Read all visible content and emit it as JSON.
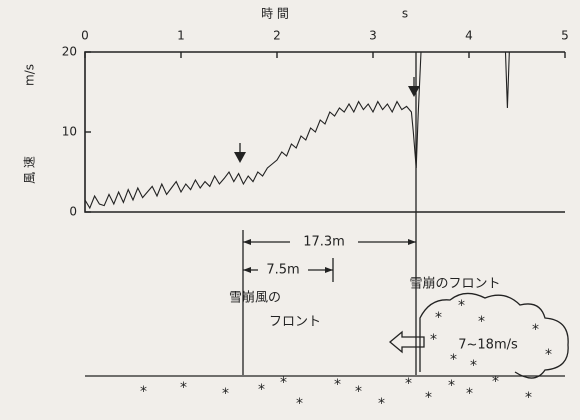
{
  "chart_data": {
    "type": "line",
    "xlabel": "時 間",
    "xunit": "s",
    "ylabel": "風 速",
    "yunit": "m/s",
    "x": [
      0,
      0.05,
      0.1,
      0.15,
      0.2,
      0.25,
      0.3,
      0.35,
      0.4,
      0.45,
      0.5,
      0.55,
      0.6,
      0.65,
      0.7,
      0.75,
      0.8,
      0.85,
      0.9,
      0.95,
      1.0,
      1.05,
      1.1,
      1.15,
      1.2,
      1.25,
      1.3,
      1.35,
      1.4,
      1.45,
      1.5,
      1.55,
      1.6,
      1.65,
      1.7,
      1.75,
      1.8,
      1.85,
      1.9,
      1.95,
      2.0,
      2.05,
      2.1,
      2.15,
      2.2,
      2.25,
      2.3,
      2.35,
      2.4,
      2.45,
      2.5,
      2.55,
      2.6,
      2.65,
      2.7,
      2.75,
      2.8,
      2.85,
      2.9,
      2.95,
      3.0,
      3.05,
      3.1,
      3.15,
      3.2,
      3.25,
      3.3,
      3.35,
      3.4,
      3.42,
      3.45,
      3.47,
      3.5,
      4.38,
      4.4,
      4.42,
      5
    ],
    "values": [
      1.5,
      0.5,
      2,
      1,
      0.8,
      2.2,
      1,
      2.5,
      1.2,
      2.8,
      1.5,
      3,
      1.8,
      2.5,
      3.2,
      2,
      3.5,
      2.2,
      3,
      3.8,
      2.5,
      3.5,
      2.8,
      4,
      3,
      3.8,
      3.2,
      4.5,
      3.5,
      4.2,
      5,
      3.8,
      4.8,
      3.5,
      4.5,
      3.8,
      5,
      4.5,
      5.5,
      6,
      6.5,
      7.5,
      7,
      8.5,
      8,
      9.5,
      9,
      10.5,
      10,
      11.5,
      11,
      12.5,
      12,
      13,
      12.5,
      13.5,
      12.5,
      13.8,
      12.8,
      13.5,
      12.5,
      13.8,
      12.8,
      13.5,
      12.5,
      13.8,
      12.8,
      13.2,
      12.5,
      10,
      5.5,
      12,
      20,
      20,
      13,
      20,
      20
    ],
    "color": "#222222",
    "xlim": [
      0,
      5
    ],
    "xticks": [
      0,
      1,
      2,
      3,
      4,
      5
    ],
    "ylim": [
      0,
      20
    ],
    "yticks": [
      0,
      10,
      20
    ],
    "annotations": [
      "17.3m",
      "7.5m",
      "雪崩風の",
      "フロント",
      "雪崩のフロント",
      "7~18m/s"
    ]
  }
}
